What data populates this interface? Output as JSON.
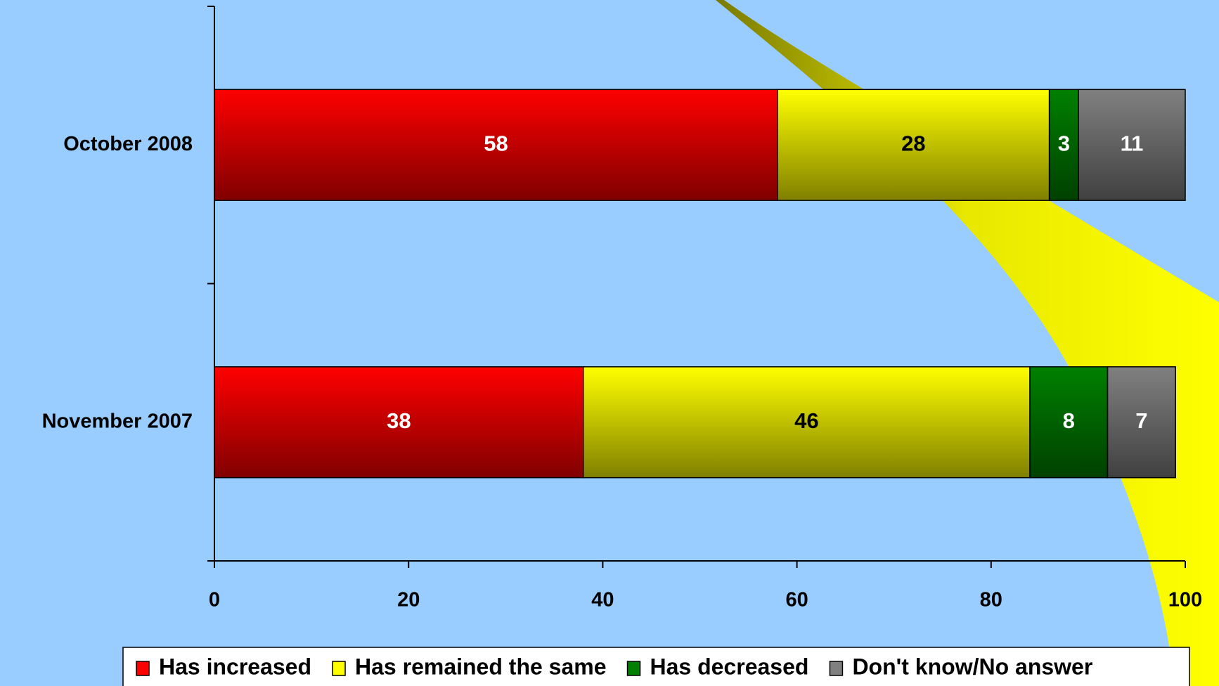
{
  "chart_data": {
    "type": "stacked-bar-horizontal",
    "categories": [
      "October 2008",
      "November 2007"
    ],
    "series": [
      {
        "name": "Has increased",
        "color": "#ff0000",
        "label_color": "#ffffff",
        "values": [
          58,
          38
        ]
      },
      {
        "name": "Has remained the same",
        "color": "#ffff00",
        "label_color": "#000000",
        "values": [
          28,
          46
        ]
      },
      {
        "name": "Has decreased",
        "color": "#008000",
        "label_color": "#ffffff",
        "values": [
          3,
          8
        ]
      },
      {
        "name": "Don't know/No answer",
        "color": "#808080",
        "label_color": "#ffffff",
        "values": [
          11,
          7
        ]
      }
    ],
    "xlim": [
      0,
      100
    ],
    "xticks": [
      0,
      20,
      40,
      60,
      80,
      100
    ],
    "legend": "bottom"
  }
}
